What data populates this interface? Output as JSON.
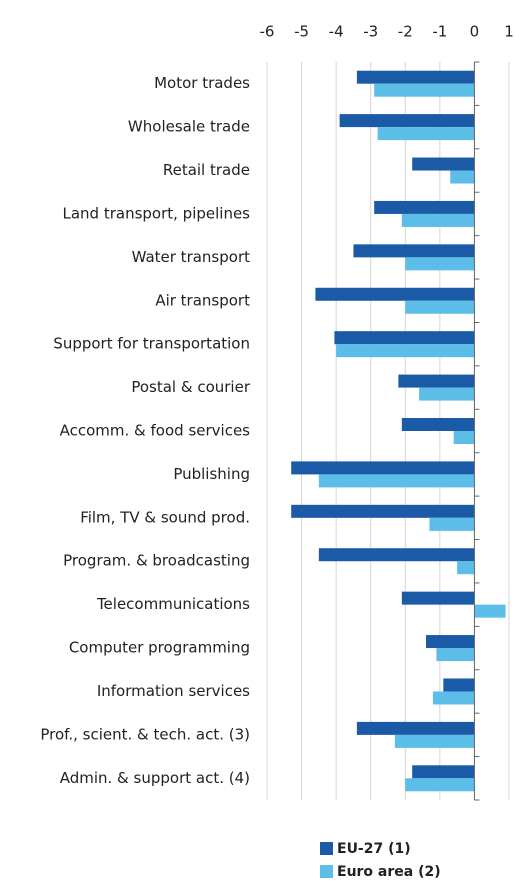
{
  "chart_data": {
    "type": "hbar",
    "categories": [
      "Motor trades",
      "Wholesale trade",
      "Retail trade",
      "Land transport, pipelines",
      "Water transport",
      "Air transport",
      "Support for transportation",
      "Postal & courier",
      "Accomm. & food services",
      "Publishing",
      "Film, TV & sound prod.",
      "Program. & broadcasting",
      "Telecommunications",
      "Computer programming",
      "Information services",
      "Prof., scient. & tech. act. (3)",
      "Admin. & support act. (4)"
    ],
    "series": [
      {
        "name": "EU-27 (1)",
        "color": "#1b5aa6",
        "values": [
          -3.4,
          -3.9,
          -1.8,
          -2.9,
          -3.5,
          -4.6,
          -4.05,
          -2.2,
          -2.1,
          -5.3,
          -5.3,
          -4.5,
          -2.1,
          -1.4,
          -0.9,
          -3.4,
          -1.8
        ]
      },
      {
        "name": "Euro area (2)",
        "color": "#5bbde8",
        "values": [
          -2.9,
          -2.8,
          -0.7,
          -2.1,
          -2.0,
          -2.0,
          -4.0,
          -1.6,
          -0.6,
          -4.5,
          -1.3,
          -0.5,
          0.9,
          -1.1,
          -1.2,
          -2.3,
          -2.0
        ]
      }
    ],
    "xlim": [
      -6,
      1
    ],
    "xticks": [
      -6,
      -5,
      -4,
      -3,
      -2,
      -1,
      0,
      1
    ],
    "grid": true
  }
}
